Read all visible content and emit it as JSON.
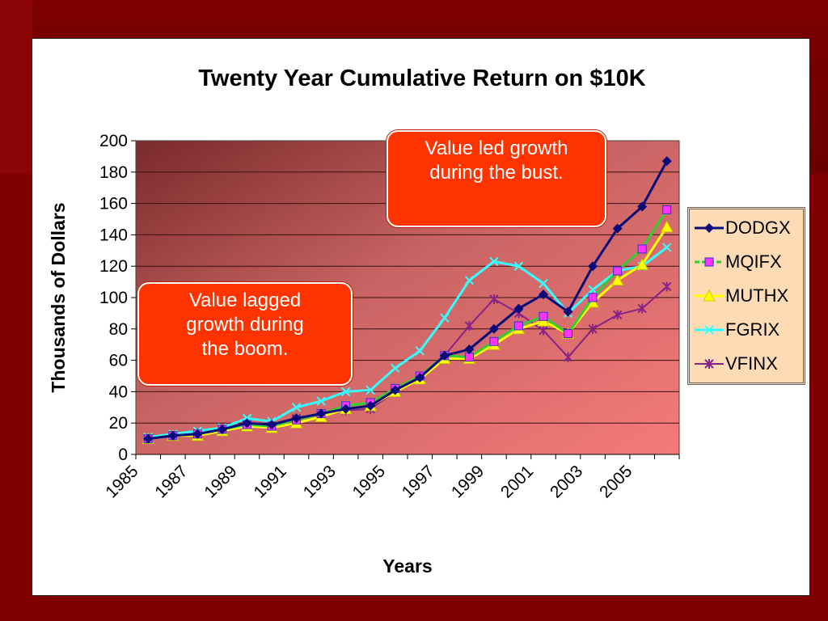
{
  "chart_data": {
    "type": "line",
    "title": "Twenty Year Cumulative Return on $10K",
    "xlabel": "Years",
    "ylabel": "Thousands of Dollars",
    "ylim": [
      0,
      200
    ],
    "yticks": [
      "0",
      "20",
      "40",
      "60",
      "80",
      "100",
      "120",
      "140",
      "160",
      "180",
      "200"
    ],
    "x": [
      1985,
      1986,
      1987,
      1988,
      1989,
      1990,
      1991,
      1992,
      1993,
      1994,
      1995,
      1996,
      1997,
      1998,
      1999,
      2000,
      2001,
      2002,
      2003,
      2004,
      2005,
      2006
    ],
    "xtick_labels": [
      "1985",
      "1987",
      "1989",
      "1991",
      "1993",
      "1995",
      "1997",
      "1999",
      "2001",
      "2003",
      "2005"
    ],
    "grid": true,
    "legend_position": "right",
    "series": [
      {
        "name": "DODGX",
        "color": "#0a0a7a",
        "marker": "diamond",
        "values": [
          10,
          12,
          13,
          16,
          20,
          19,
          23,
          26,
          29,
          31,
          41,
          49,
          63,
          67,
          80,
          93,
          102,
          91,
          120,
          144,
          158,
          187
        ]
      },
      {
        "name": "MQIFX",
        "color": "#33cc33",
        "marker": "square",
        "marker_fill": "#ff33ff",
        "values": [
          10,
          12,
          13,
          16,
          19,
          18,
          22,
          26,
          31,
          33,
          42,
          50,
          63,
          62,
          72,
          82,
          88,
          77,
          100,
          117,
          131,
          156
        ]
      },
      {
        "name": "MUTHX",
        "color": "#ffff00",
        "marker": "triangle",
        "values": [
          10,
          12,
          12,
          15,
          18,
          17,
          20,
          24,
          29,
          31,
          40,
          48,
          61,
          61,
          70,
          80,
          85,
          77,
          97,
          111,
          121,
          145
        ]
      },
      {
        "name": "FGRIX",
        "color": "#33ffff",
        "marker": "x",
        "values": [
          11,
          13,
          15,
          17,
          23,
          21,
          30,
          34,
          40,
          41,
          55,
          66,
          87,
          111,
          123,
          120,
          109,
          90,
          105,
          117,
          120,
          132
        ]
      },
      {
        "name": "VFINX",
        "color": "#882288",
        "marker": "star",
        "values": [
          10,
          12,
          13,
          15,
          18,
          18,
          23,
          25,
          28,
          29,
          40,
          48,
          63,
          82,
          99,
          90,
          79,
          62,
          80,
          89,
          93,
          107
        ]
      }
    ]
  },
  "callouts": {
    "bust": [
      "Value led growth",
      "during the bust."
    ],
    "boom": [
      "Value lagged",
      "growth during",
      "the boom."
    ]
  }
}
